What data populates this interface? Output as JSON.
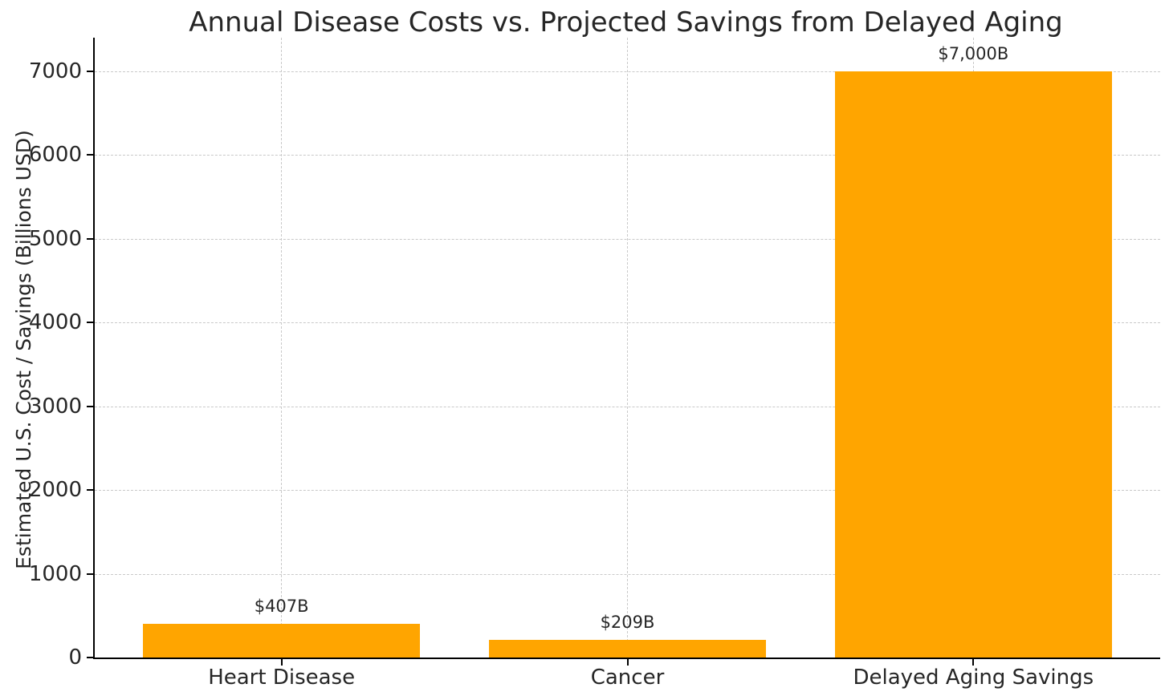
{
  "chart_data": {
    "type": "bar",
    "title": "Annual Disease Costs vs. Projected Savings from Delayed Aging",
    "ylabel": "Estimated U.S. Cost / Savings (Billions USD)",
    "xlabel": "",
    "categories": [
      "Heart Disease",
      "Cancer",
      "Delayed Aging Savings"
    ],
    "values": [
      407,
      209,
      7000
    ],
    "value_labels": [
      "$407B",
      "$209B",
      "$7,000B"
    ],
    "yticks": [
      0,
      1000,
      2000,
      3000,
      4000,
      5000,
      6000,
      7000
    ],
    "ylim": [
      0,
      7400
    ],
    "xlim": [
      -0.54,
      2.54
    ],
    "bar_width_data_units": 0.8,
    "grid": "dashed gridlines on both axes, drawn below bars",
    "legend": "none",
    "bar_color": "#FFA500",
    "grid_color": "#c9c9c9",
    "text_color": "#262626",
    "axis_color": "#000000"
  }
}
